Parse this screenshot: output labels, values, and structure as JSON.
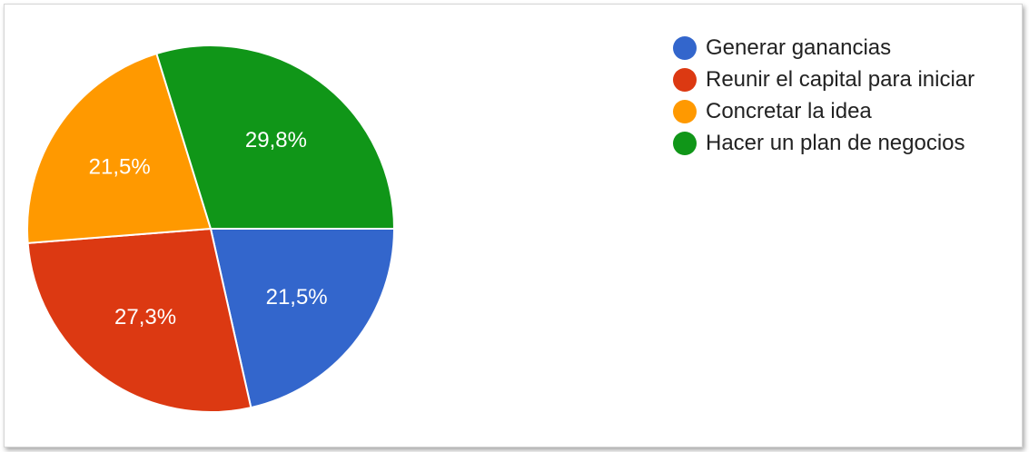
{
  "chart_data": {
    "type": "pie",
    "labels": [
      "Generar ganancias",
      "Reunir el capital para iniciar",
      "Concretar la idea",
      "Hacer un plan de negocios"
    ],
    "values": [
      21.5,
      27.3,
      21.5,
      29.8
    ],
    "value_labels": [
      "21,5%",
      "27,3%",
      "21,5%",
      "29,8%"
    ],
    "colors": [
      "#3366cc",
      "#dc3912",
      "#ff9900",
      "#109618"
    ],
    "legend": "right"
  }
}
